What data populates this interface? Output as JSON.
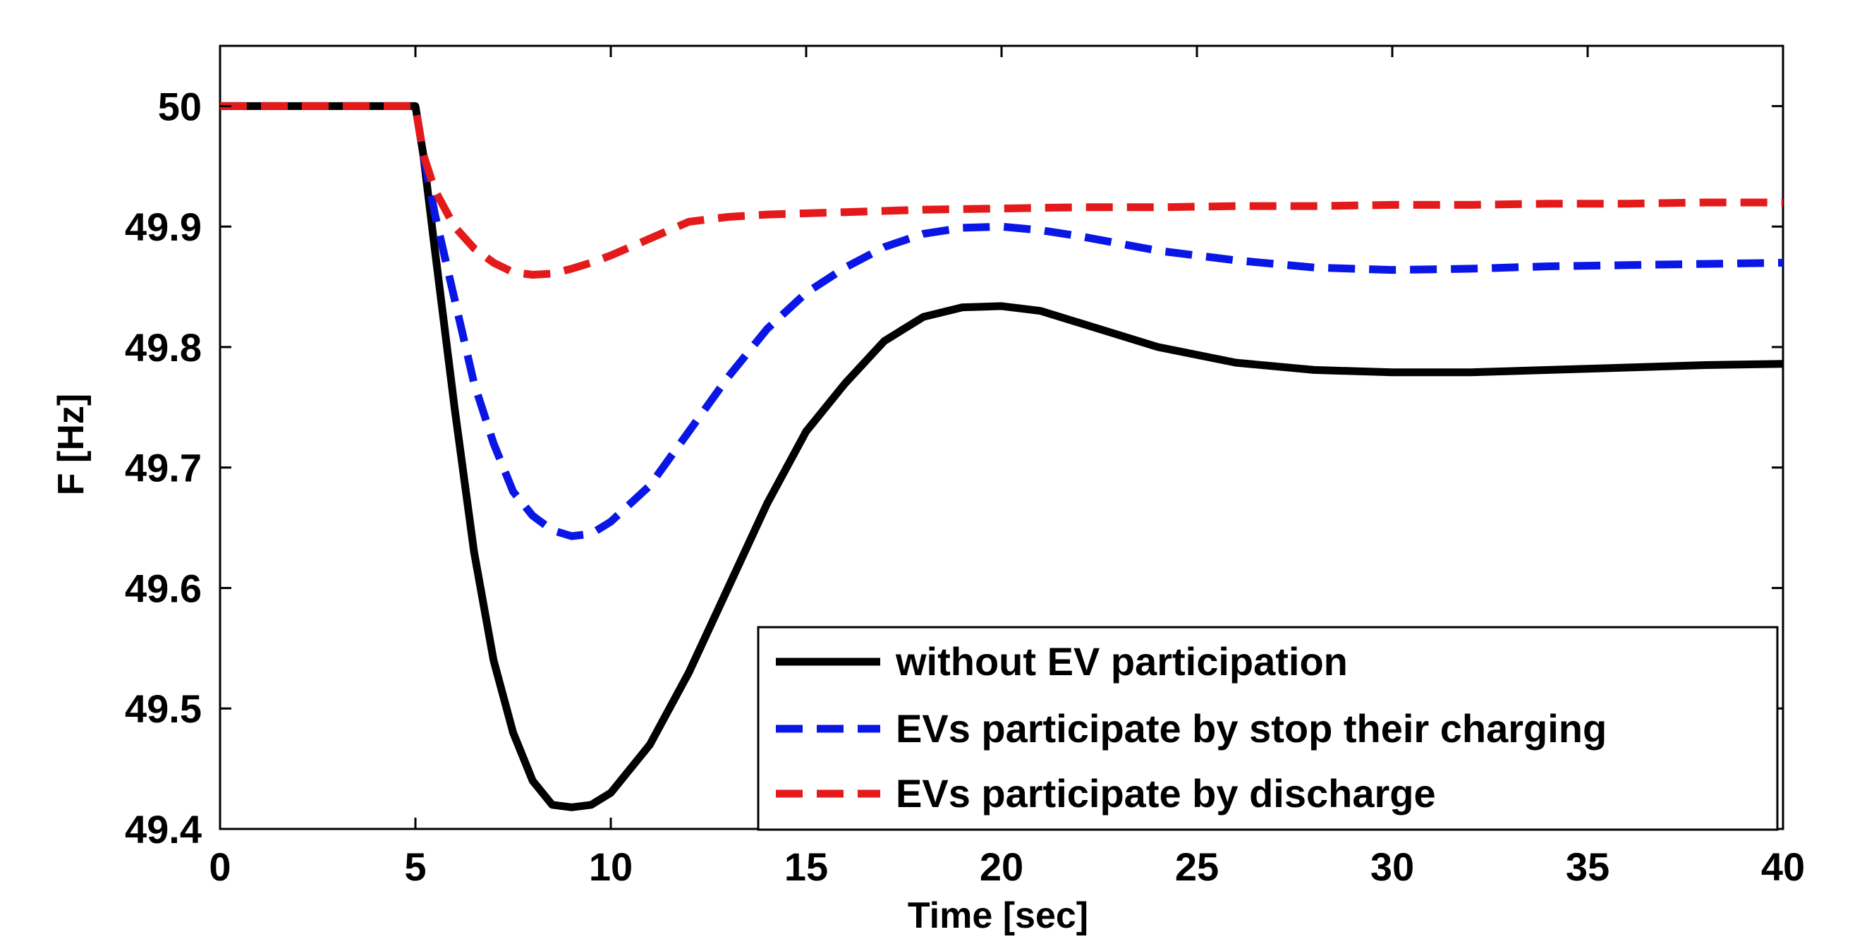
{
  "chart_data": {
    "type": "line",
    "title": "",
    "xlabel": "Time [sec]",
    "ylabel": "F [Hz]",
    "xlim": [
      0,
      40
    ],
    "ylim": [
      49.4,
      50.05
    ],
    "xticks": [
      0,
      5,
      10,
      15,
      20,
      25,
      30,
      35,
      40
    ],
    "yticks": [
      49.4,
      49.5,
      49.6,
      49.7,
      49.8,
      49.9,
      50
    ],
    "xtick_labels": [
      "0",
      "5",
      "10",
      "15",
      "20",
      "25",
      "30",
      "35",
      "40"
    ],
    "ytick_labels": [
      "49.4",
      "49.5",
      "49.6",
      "49.7",
      "49.8",
      "49.9",
      "50"
    ],
    "grid": false,
    "legend_position": "lower-right",
    "series": [
      {
        "name": "without EV participation",
        "color": "#000000",
        "style": "solid",
        "x": [
          0,
          5,
          5.2,
          5.5,
          6,
          6.5,
          7,
          7.5,
          8,
          8.5,
          9,
          9.5,
          10,
          11,
          12,
          13,
          14,
          15,
          16,
          17,
          18,
          19,
          20,
          21,
          22,
          24,
          26,
          28,
          30,
          32,
          34,
          36,
          38,
          40
        ],
        "y": [
          50.0,
          50.0,
          49.96,
          49.88,
          49.75,
          49.63,
          49.54,
          49.48,
          49.44,
          49.42,
          49.418,
          49.42,
          49.43,
          49.47,
          49.53,
          49.6,
          49.67,
          49.73,
          49.77,
          49.805,
          49.825,
          49.833,
          49.834,
          49.83,
          49.82,
          49.8,
          49.787,
          49.781,
          49.779,
          49.779,
          49.781,
          49.783,
          49.785,
          49.786
        ]
      },
      {
        "name": "EVs participate by stop their charging",
        "color": "#0a16e6",
        "style": "dashed",
        "x": [
          0,
          5,
          5.2,
          5.5,
          6,
          6.5,
          7,
          7.5,
          8,
          8.5,
          9,
          9.5,
          10,
          11,
          12,
          13,
          14,
          15,
          16,
          17,
          18,
          19,
          20,
          21,
          22,
          24,
          26,
          28,
          30,
          32,
          34,
          36,
          38,
          40
        ],
        "y": [
          50.0,
          50.0,
          49.96,
          49.91,
          49.84,
          49.77,
          49.72,
          49.68,
          49.66,
          49.648,
          49.643,
          49.645,
          49.655,
          49.685,
          49.73,
          49.775,
          49.815,
          49.845,
          49.866,
          49.883,
          49.894,
          49.899,
          49.9,
          49.897,
          49.892,
          49.88,
          49.872,
          49.866,
          49.864,
          49.865,
          49.867,
          49.868,
          49.869,
          49.87
        ]
      },
      {
        "name": "EVs participate by discharge",
        "color": "#e41a1a",
        "style": "dashed",
        "x": [
          0,
          5,
          5.2,
          5.5,
          6,
          6.5,
          7,
          7.5,
          8,
          8.5,
          9,
          9.5,
          10,
          11,
          12,
          13,
          14,
          16,
          18,
          20,
          22,
          24,
          26,
          28,
          30,
          32,
          34,
          36,
          38,
          40
        ],
        "y": [
          50.0,
          50.0,
          49.96,
          49.93,
          49.9,
          49.882,
          49.87,
          49.862,
          49.86,
          49.861,
          49.865,
          49.87,
          49.876,
          49.89,
          49.904,
          49.908,
          49.91,
          49.912,
          49.914,
          49.915,
          49.916,
          49.916,
          49.917,
          49.917,
          49.918,
          49.918,
          49.919,
          49.919,
          49.92,
          49.92
        ]
      }
    ]
  }
}
